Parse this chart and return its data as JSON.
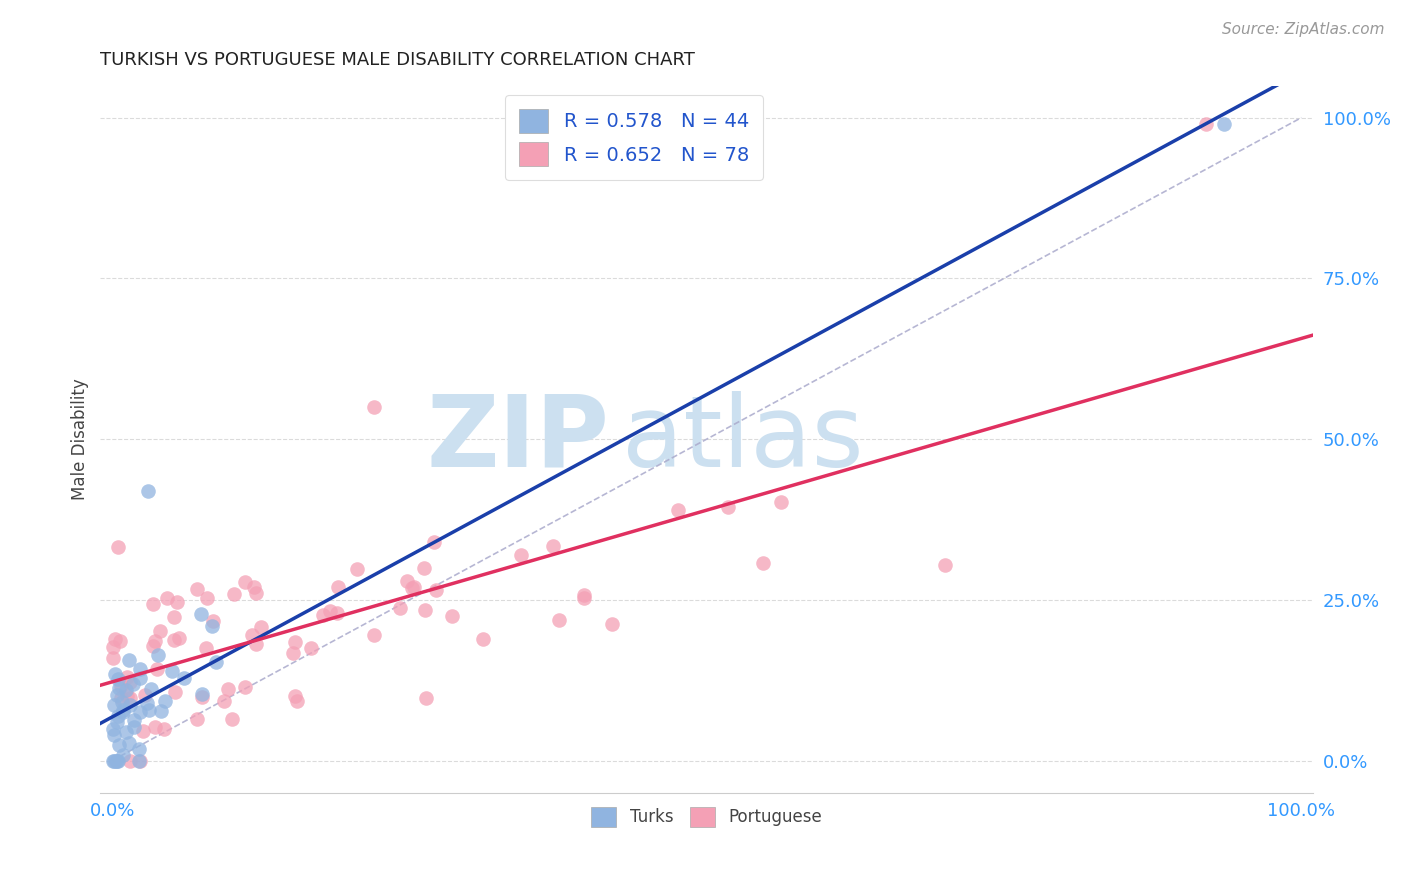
{
  "title": "TURKISH VS PORTUGUESE MALE DISABILITY CORRELATION CHART",
  "source": "Source: ZipAtlas.com",
  "ylabel": "Male Disability",
  "xlim": [
    -0.01,
    1.01
  ],
  "ylim": [
    -0.05,
    1.05
  ],
  "x_tick_labels": [
    "0.0%",
    "100.0%"
  ],
  "x_tick_positions": [
    0.0,
    1.0
  ],
  "y_tick_labels": [
    "0.0%",
    "25.0%",
    "50.0%",
    "75.0%",
    "100.0%"
  ],
  "y_tick_positions": [
    0.0,
    0.25,
    0.5,
    0.75,
    1.0
  ],
  "background_color": "#ffffff",
  "watermark_zip": "ZIP",
  "watermark_atlas": "atlas",
  "watermark_color": "#cce0f0",
  "turks_color": "#90b4e0",
  "portuguese_color": "#f4a0b5",
  "turks_line_color": "#1a3faa",
  "portuguese_line_color": "#e03060",
  "diagonal_color": "#aaaacc",
  "legend_text_color": "#2255cc",
  "tick_color": "#3399ff",
  "R_turks": 0.578,
  "N_turks": 44,
  "R_portuguese": 0.652,
  "N_portuguese": 78
}
